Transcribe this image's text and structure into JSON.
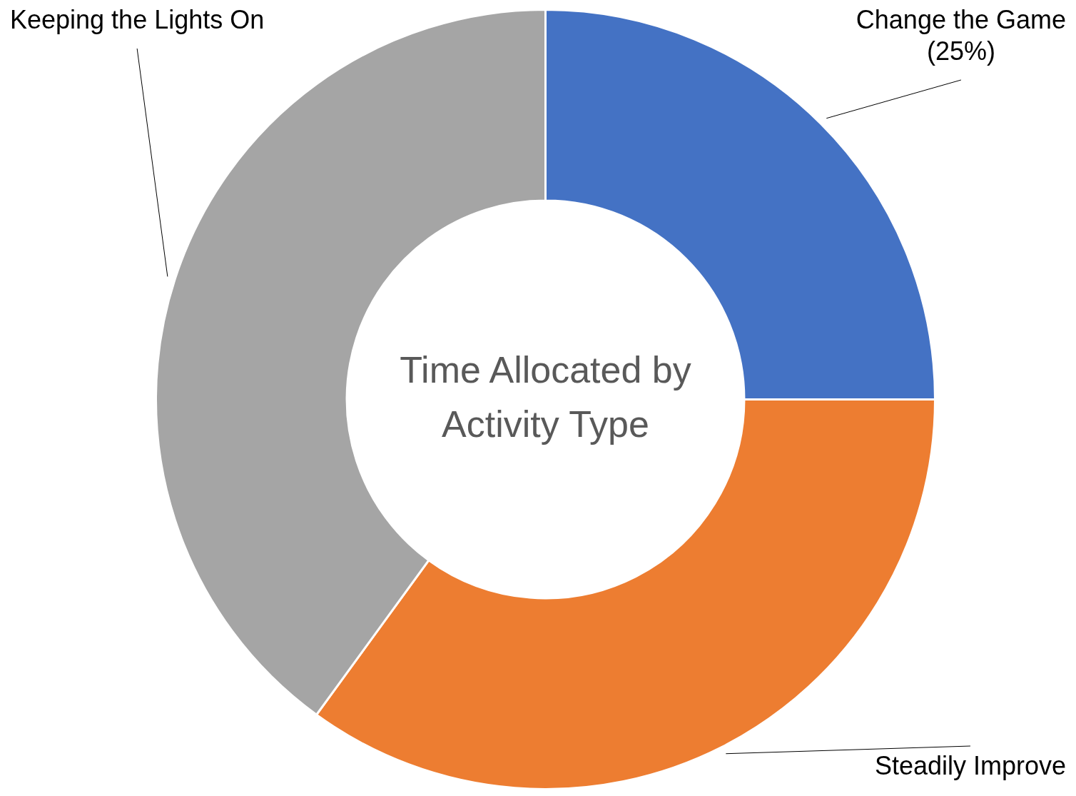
{
  "chart_data": {
    "type": "donut",
    "title": "Time Allocated by Activity Type",
    "categories": [
      "Change the Game",
      "Steadily Improve",
      "Keeping the Lights On"
    ],
    "values": [
      25,
      35,
      40
    ],
    "colors": [
      "#4472c4",
      "#ed7d31",
      "#a5a5a5"
    ],
    "value_labels": [
      "(25%)",
      null,
      null
    ],
    "legend": false
  }
}
